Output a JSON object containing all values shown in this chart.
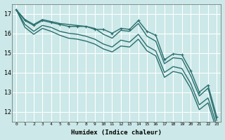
{
  "xlabel": "Humidex (Indice chaleur)",
  "background_color": "#cce8e8",
  "grid_color": "#ffffff",
  "line_color": "#2a6e6e",
  "xlim": [
    -0.5,
    23.5
  ],
  "ylim": [
    11.5,
    17.5
  ],
  "yticks": [
    12,
    13,
    14,
    15,
    16,
    17
  ],
  "xticks": [
    0,
    1,
    2,
    3,
    4,
    5,
    6,
    7,
    8,
    9,
    10,
    11,
    12,
    13,
    14,
    15,
    16,
    17,
    18,
    19,
    20,
    21,
    22,
    23
  ],
  "series_with_markers": [
    [
      17.2,
      16.65,
      16.4,
      16.65,
      16.55,
      16.45,
      16.35,
      16.35,
      16.35,
      16.2,
      16.2,
      16.0,
      16.25,
      16.2,
      16.65,
      16.1,
      15.9,
      14.65,
      14.95,
      14.9,
      14.1,
      13.0,
      13.35,
      11.75
    ]
  ],
  "series_smooth": [
    [
      17.2,
      16.7,
      16.45,
      16.7,
      16.6,
      16.5,
      16.45,
      16.4,
      16.35,
      16.25,
      15.95,
      15.75,
      16.15,
      16.1,
      16.5,
      15.85,
      15.6,
      14.45,
      14.75,
      14.7,
      13.85,
      12.8,
      13.2,
      11.55
    ],
    [
      17.2,
      16.45,
      16.1,
      16.4,
      16.3,
      16.1,
      16.0,
      15.95,
      15.85,
      15.7,
      15.45,
      15.3,
      15.65,
      15.55,
      15.95,
      15.35,
      15.1,
      14.0,
      14.3,
      14.2,
      13.45,
      12.35,
      12.7,
      11.3
    ],
    [
      17.2,
      16.3,
      15.95,
      16.25,
      16.1,
      15.9,
      15.75,
      15.7,
      15.6,
      15.45,
      15.2,
      15.05,
      15.35,
      15.3,
      15.7,
      15.1,
      14.85,
      13.75,
      14.05,
      13.95,
      13.2,
      12.1,
      12.45,
      11.05
    ]
  ],
  "linewidth": 1.0,
  "markersize": 2.5
}
